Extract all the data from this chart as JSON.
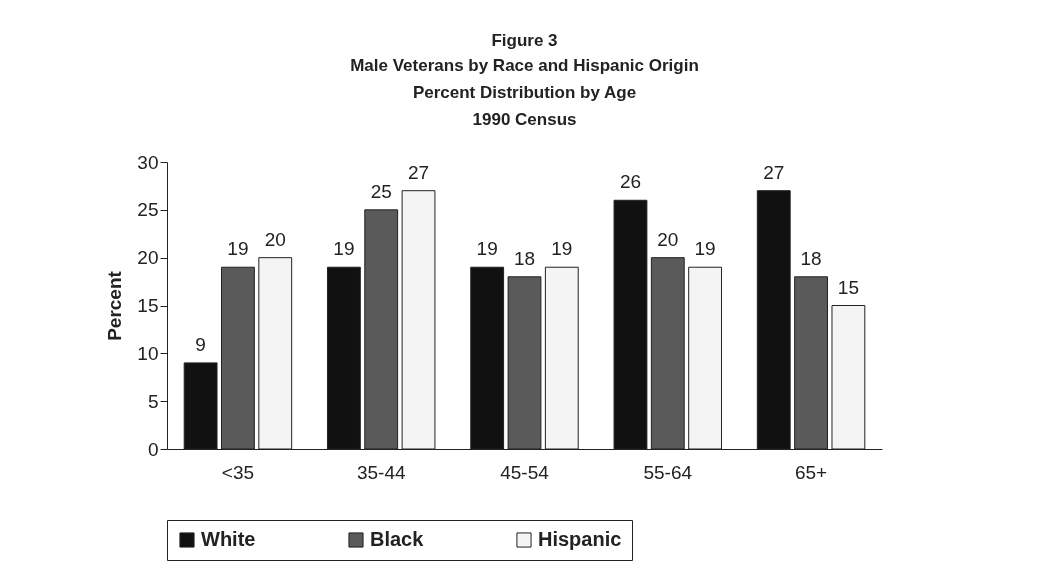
{
  "chart_data": {
    "type": "bar",
    "title": "Figure 3",
    "subtitle": "Male Veterans by Race and Hispanic Origin\nPercent Distribution by Age\n1990 Census",
    "ylabel": "Percent",
    "categories": [
      "<35",
      "35-44",
      "45-54",
      "55-64",
      "65+"
    ],
    "series": [
      {
        "name": "White",
        "color": "#111111",
        "values": [
          9,
          19,
          19,
          26,
          27
        ]
      },
      {
        "name": "Black",
        "color": "#5a5a5a",
        "values": [
          19,
          25,
          18,
          20,
          18
        ]
      },
      {
        "name": "Hispanic",
        "color": "#f4f4f4",
        "values": [
          20,
          27,
          19,
          19,
          15
        ]
      }
    ],
    "ylim": [
      0,
      30
    ],
    "yticks": [
      0,
      5,
      10,
      15,
      20,
      25,
      30
    ],
    "grid": false,
    "legend": "bottom",
    "data_labels": true
  }
}
